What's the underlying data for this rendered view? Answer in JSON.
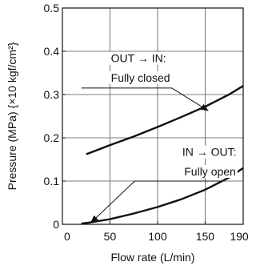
{
  "chart_data": {
    "type": "line",
    "title": "",
    "xlabel": "Flow rate (L/min)",
    "ylabel": "Pressure (MPa) {×10 kgf/cm²}",
    "xlim": [
      0,
      190
    ],
    "ylim": [
      0,
      0.5
    ],
    "x_ticks": [
      0,
      50,
      100,
      150,
      190
    ],
    "x_tick_labels": [
      "0",
      "50",
      "100",
      "150",
      "190"
    ],
    "y_ticks": [
      0,
      0.1,
      0.2,
      0.3,
      0.4,
      0.5
    ],
    "y_tick_labels": [
      "0",
      "0.1",
      "0.2",
      "0.3",
      "0.4",
      "0.5"
    ],
    "grid": true,
    "series": [
      {
        "x": [
          25,
          50,
          75,
          100,
          125,
          150,
          175,
          190
        ],
        "y": [
          0.162,
          0.183,
          0.203,
          0.225,
          0.248,
          0.272,
          0.3,
          0.32
        ],
        "color": "#111111"
      },
      {
        "x": [
          20,
          25,
          50,
          75,
          100,
          125,
          150,
          175,
          190
        ],
        "y": [
          0.002,
          0.003,
          0.012,
          0.025,
          0.04,
          0.058,
          0.08,
          0.108,
          0.13
        ],
        "color": "#111111"
      }
    ],
    "annotations": [
      {
        "line1": "OUT → IN:",
        "line2": "Fully closed",
        "text_at": [
          51,
          0.375
        ],
        "text_at2": [
          51,
          0.33
        ],
        "underline_from": [
          20,
          0.315
        ],
        "underline_to": [
          115,
          0.315
        ],
        "arrow_from": [
          115,
          0.315
        ],
        "arrow_to": [
          153,
          0.263
        ]
      },
      {
        "line1": "IN → OUT:",
        "line2": "Fully open",
        "text_at": [
          126,
          0.158
        ],
        "text_at2": [
          128,
          0.113
        ],
        "underline_from": [
          76,
          0.1
        ],
        "underline_to": [
          170,
          0.1
        ],
        "arrow_from": [
          76,
          0.1
        ],
        "arrow_to": [
          30,
          0.004
        ]
      }
    ]
  }
}
